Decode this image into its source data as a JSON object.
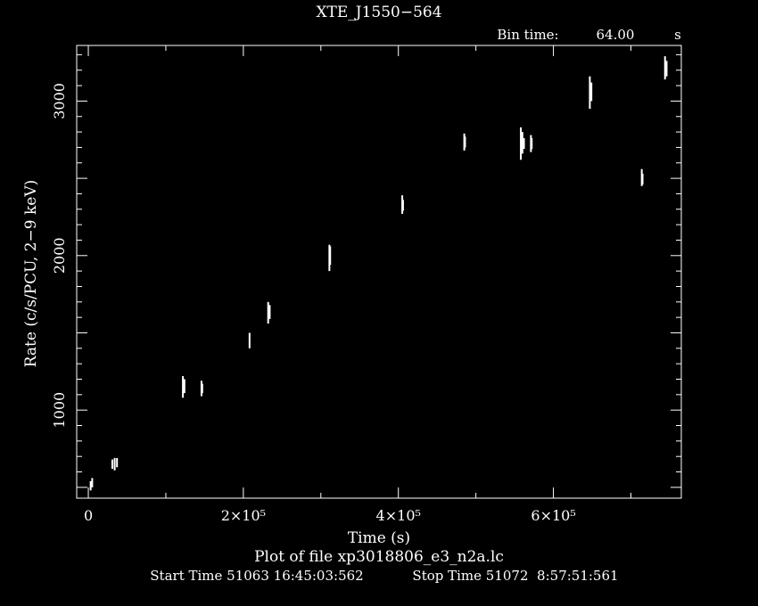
{
  "chart_data": {
    "type": "scatter",
    "title": "XTE_J1550−564",
    "bin_time_label": "Bin time:",
    "bin_time_value": "64.00",
    "bin_time_unit": "s",
    "xlabel": "Time (s)",
    "ylabel": "Rate (c/s/PCU, 2−9 keV)",
    "file_label": "Plot of file xp3018806_e3_n2a.lc",
    "start_label": "Start Time 51063 16:45:03:562",
    "stop_label": "Stop Time 51072  8:57:51:561",
    "xlim": [
      -15000,
      765000
    ],
    "ylim": [
      430,
      3360
    ],
    "x_ticks": [
      {
        "value": 0,
        "label": "0"
      },
      {
        "value": 200000,
        "label": "2×10⁵"
      },
      {
        "value": 400000,
        "label": "4×10⁵"
      },
      {
        "value": 600000,
        "label": "6×10⁵"
      }
    ],
    "y_ticks": [
      {
        "value": 1000,
        "label": "1000"
      },
      {
        "value": 2000,
        "label": "2000"
      },
      {
        "value": 3000,
        "label": "3000"
      }
    ],
    "segments": [
      {
        "x": 3000,
        "ymin": 480,
        "ymax": 540
      },
      {
        "x": 5000,
        "ymin": 500,
        "ymax": 560
      },
      {
        "x": 31000,
        "ymin": 620,
        "ymax": 680
      },
      {
        "x": 34000,
        "ymin": 610,
        "ymax": 690
      },
      {
        "x": 37000,
        "ymin": 630,
        "ymax": 690
      },
      {
        "x": 122000,
        "ymin": 1080,
        "ymax": 1220
      },
      {
        "x": 124000,
        "ymin": 1110,
        "ymax": 1200
      },
      {
        "x": 146000,
        "ymin": 1090,
        "ymax": 1190
      },
      {
        "x": 147000,
        "ymin": 1110,
        "ymax": 1170
      },
      {
        "x": 208000,
        "ymin": 1400,
        "ymax": 1500
      },
      {
        "x": 232000,
        "ymin": 1560,
        "ymax": 1700
      },
      {
        "x": 234000,
        "ymin": 1590,
        "ymax": 1680
      },
      {
        "x": 311000,
        "ymin": 1900,
        "ymax": 2070
      },
      {
        "x": 312000,
        "ymin": 1940,
        "ymax": 2060
      },
      {
        "x": 405000,
        "ymin": 2270,
        "ymax": 2390
      },
      {
        "x": 406000,
        "ymin": 2290,
        "ymax": 2360
      },
      {
        "x": 485000,
        "ymin": 2680,
        "ymax": 2790
      },
      {
        "x": 486000,
        "ymin": 2700,
        "ymax": 2770
      },
      {
        "x": 558000,
        "ymin": 2620,
        "ymax": 2830
      },
      {
        "x": 560000,
        "ymin": 2660,
        "ymax": 2800
      },
      {
        "x": 562000,
        "ymin": 2690,
        "ymax": 2760
      },
      {
        "x": 571000,
        "ymin": 2670,
        "ymax": 2780
      },
      {
        "x": 572000,
        "ymin": 2690,
        "ymax": 2760
      },
      {
        "x": 647000,
        "ymin": 2950,
        "ymax": 3160
      },
      {
        "x": 649000,
        "ymin": 3000,
        "ymax": 3120
      },
      {
        "x": 714000,
        "ymin": 2450,
        "ymax": 2560
      },
      {
        "x": 715000,
        "ymin": 2460,
        "ymax": 2530
      },
      {
        "x": 744000,
        "ymin": 3140,
        "ymax": 3290
      },
      {
        "x": 746000,
        "ymin": 3160,
        "ymax": 3260
      }
    ]
  }
}
